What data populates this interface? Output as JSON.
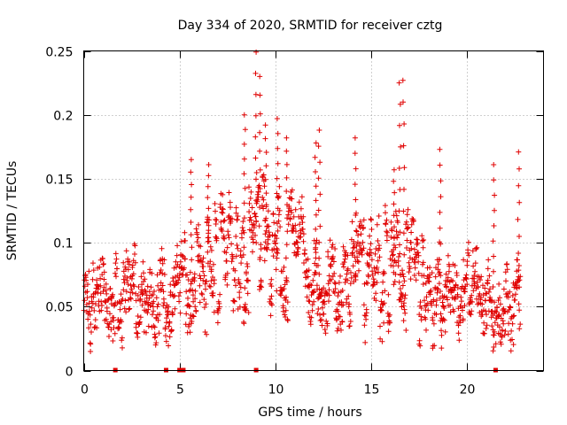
{
  "chart_data": {
    "type": "scatter",
    "title": "Day 334 of 2020, SRMTID for receiver cztg",
    "xlabel": "GPS time / hours",
    "ylabel": "SRMTID / TECUs",
    "xlim": [
      0,
      24
    ],
    "ylim": [
      0,
      0.25
    ],
    "xticks": [
      0,
      5,
      10,
      15,
      20
    ],
    "xtick_labels": [
      "0",
      "5",
      "10",
      "15",
      "20"
    ],
    "yticks": [
      0,
      0.05,
      0.1,
      0.15,
      0.2,
      0.25
    ],
    "ytick_labels": [
      "0",
      "0.05",
      "0.1",
      "0.15",
      "0.2",
      "0.25"
    ],
    "grid": true,
    "marker": "plus",
    "color": "#e00000",
    "x_end": 22.8,
    "trend": [
      {
        "x": 0,
        "y": 0.055
      },
      {
        "x": 2,
        "y": 0.052
      },
      {
        "x": 4,
        "y": 0.058
      },
      {
        "x": 5,
        "y": 0.072
      },
      {
        "x": 7,
        "y": 0.088
      },
      {
        "x": 9,
        "y": 0.1
      },
      {
        "x": 11,
        "y": 0.085
      },
      {
        "x": 13,
        "y": 0.07
      },
      {
        "x": 16,
        "y": 0.078
      },
      {
        "x": 18,
        "y": 0.065
      },
      {
        "x": 20,
        "y": 0.055
      },
      {
        "x": 22.8,
        "y": 0.052
      }
    ],
    "peaks": [
      {
        "x": 5.6,
        "y": 0.165
      },
      {
        "x": 6.5,
        "y": 0.161
      },
      {
        "x": 8.4,
        "y": 0.2
      },
      {
        "x": 9.0,
        "y": 0.249
      },
      {
        "x": 9.2,
        "y": 0.23
      },
      {
        "x": 9.5,
        "y": 0.192
      },
      {
        "x": 10.1,
        "y": 0.197
      },
      {
        "x": 10.6,
        "y": 0.182
      },
      {
        "x": 12.1,
        "y": 0.178
      },
      {
        "x": 12.3,
        "y": 0.188
      },
      {
        "x": 14.2,
        "y": 0.182
      },
      {
        "x": 16.2,
        "y": 0.157
      },
      {
        "x": 16.5,
        "y": 0.225
      },
      {
        "x": 16.7,
        "y": 0.227
      },
      {
        "x": 18.6,
        "y": 0.173
      },
      {
        "x": 21.4,
        "y": 0.161
      },
      {
        "x": 22.7,
        "y": 0.171
      }
    ],
    "gaps": [
      1.65,
      4.3,
      5.0,
      5.2,
      9.0,
      21.5
    ],
    "point_count": 1500
  }
}
